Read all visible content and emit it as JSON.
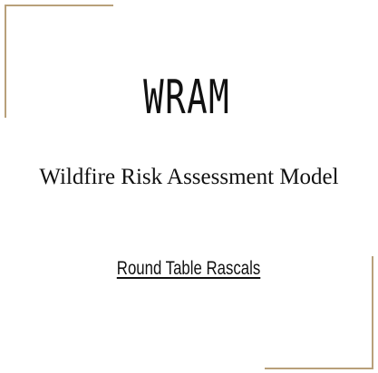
{
  "title": {
    "acronym": "WRAM",
    "full_name": "Wildfire Risk Assessment Model"
  },
  "team": {
    "name": "Round Table Rascals"
  },
  "colors": {
    "frame_accent": "#b8a07a",
    "text": "#111111",
    "background": "#ffffff"
  }
}
